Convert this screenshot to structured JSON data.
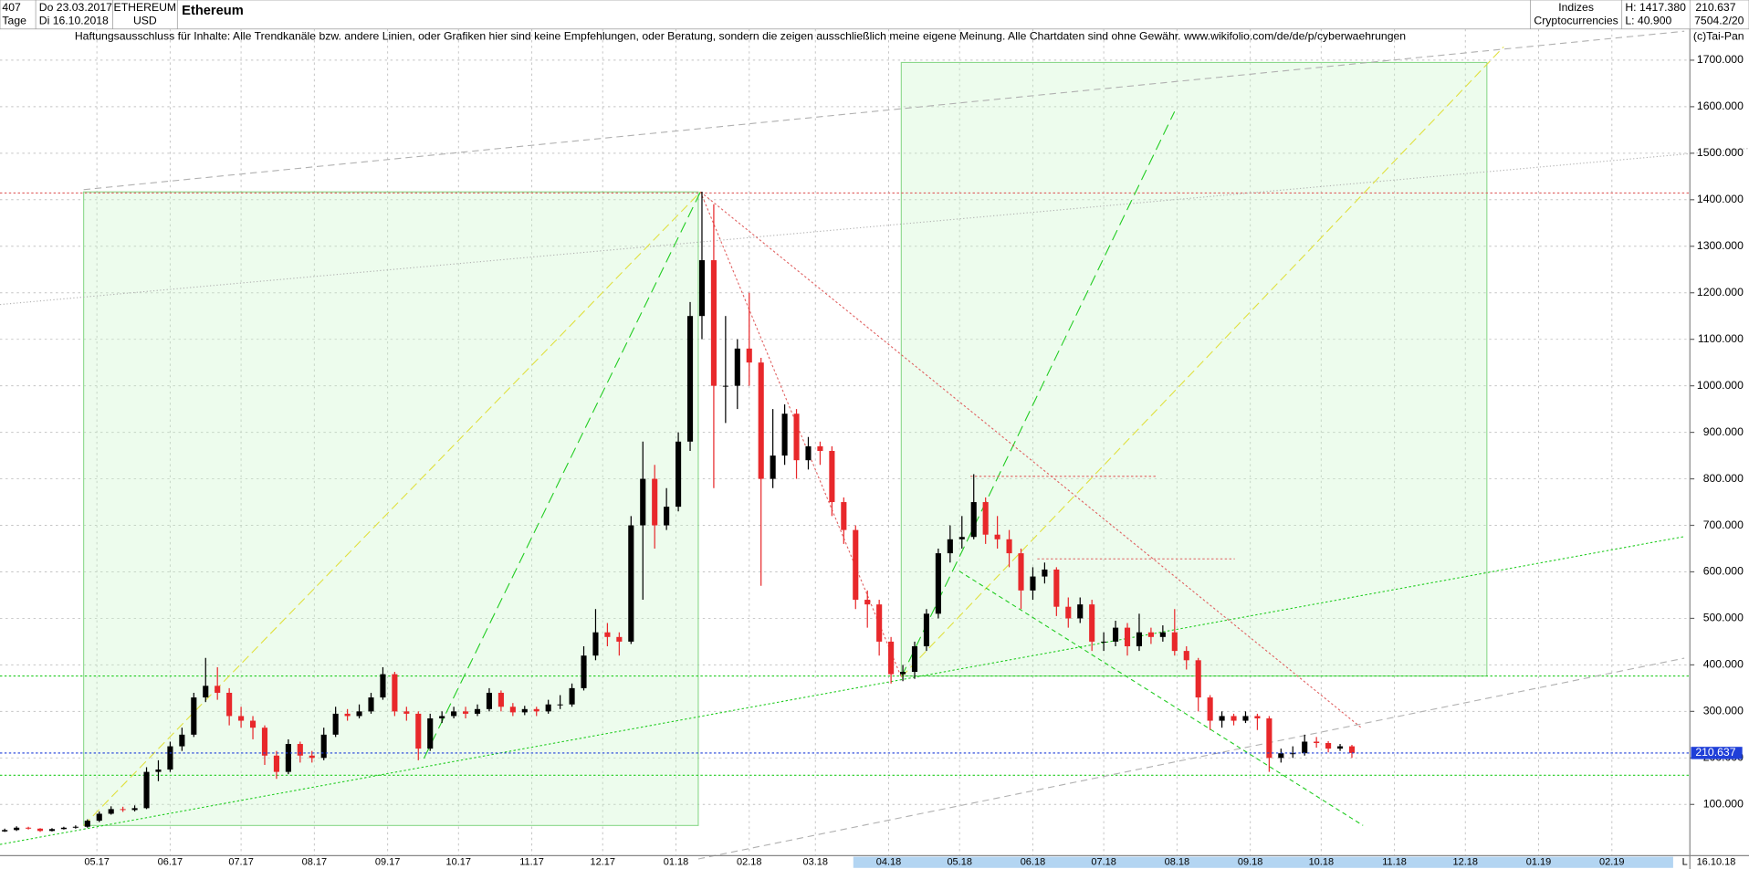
{
  "header": {
    "count": "407",
    "start": "Do 23.03.2017",
    "period": "Tage",
    "end": "Di 16.10.2018",
    "symbol": "ETHEREUM",
    "currency": "USD",
    "group": "Indizes",
    "category": "Cryptocurrencies",
    "high": "H: 1417.380",
    "low": "L: 40.900",
    "last": "210.637",
    "extra": "7504.2/20",
    "copyright": "(c)Tai-Pan",
    "disclaimer": "Haftungsausschluss für Inhalte: Alle Trendkanäle bzw. andere Linien, oder Grafiken hier sind keine Empfehlungen, oder Beratung, sondern die zeigen ausschließlich meine eigene Meinung. Alle Chartdaten sind ohne Gewähr.  www.wikifolio.com/de/de/p/cyberwaehrungen",
    "footer_date": "16.10.18",
    "footer_mode": "L"
  },
  "chart_data": {
    "type": "candlestick",
    "title": "Ethereum",
    "up_color": "#000000",
    "down_color": "#e8282b",
    "marker_color": "#1f3fd8",
    "grid": true,
    "open": [
      42,
      45,
      50,
      48,
      43,
      47,
      50,
      52,
      65,
      80,
      90,
      88,
      92,
      170,
      175,
      225,
      250,
      330,
      355,
      340,
      290,
      280,
      265,
      205,
      170,
      230,
      205,
      200,
      250,
      295,
      290,
      300,
      330,
      380,
      300,
      295,
      220,
      285,
      290,
      300,
      295,
      305,
      340,
      310,
      298,
      305,
      300,
      315,
      315,
      350,
      420,
      470,
      460,
      450,
      700,
      800,
      700,
      740,
      880,
      1150,
      1270,
      1000,
      1000,
      1080,
      1050,
      800,
      850,
      940,
      840,
      870,
      860,
      750,
      690,
      540,
      530,
      450,
      380,
      385,
      440,
      510,
      640,
      670,
      675,
      750,
      680,
      670,
      640,
      560,
      590,
      605,
      525,
      500,
      530,
      450,
      450,
      480,
      440,
      470,
      460,
      470,
      430,
      410,
      330,
      280,
      290,
      280,
      290,
      285,
      200,
      210,
      210,
      235,
      232,
      220,
      225
    ],
    "high": [
      48,
      53,
      52,
      49,
      49,
      52,
      55,
      68,
      85,
      96,
      95,
      98,
      180,
      195,
      235,
      265,
      340,
      415,
      395,
      350,
      310,
      290,
      270,
      215,
      240,
      235,
      215,
      265,
      310,
      305,
      315,
      340,
      395,
      385,
      310,
      300,
      295,
      300,
      310,
      310,
      315,
      350,
      345,
      318,
      312,
      310,
      325,
      335,
      360,
      440,
      520,
      490,
      470,
      720,
      880,
      830,
      780,
      900,
      1180,
      1417.38,
      1390,
      1150,
      1100,
      1200,
      1060,
      950,
      960,
      950,
      890,
      880,
      870,
      760,
      700,
      560,
      540,
      460,
      400,
      450,
      520,
      650,
      700,
      720,
      810,
      760,
      720,
      690,
      650,
      610,
      620,
      610,
      545,
      545,
      540,
      470,
      495,
      490,
      510,
      480,
      485,
      520,
      440,
      415,
      335,
      300,
      295,
      300,
      295,
      290,
      220,
      225,
      250,
      245,
      236,
      230,
      228
    ],
    "low": [
      40.9,
      43,
      46,
      41,
      42,
      46,
      48,
      50,
      62,
      78,
      84,
      85,
      90,
      150,
      170,
      215,
      245,
      320,
      325,
      270,
      265,
      240,
      185,
      155,
      165,
      190,
      190,
      195,
      245,
      280,
      285,
      295,
      325,
      290,
      280,
      195,
      215,
      275,
      285,
      285,
      290,
      300,
      300,
      290,
      292,
      290,
      295,
      305,
      310,
      345,
      410,
      440,
      420,
      445,
      540,
      650,
      690,
      730,
      860,
      1100,
      780,
      920,
      950,
      1000,
      570,
      780,
      830,
      800,
      820,
      830,
      720,
      660,
      520,
      480,
      420,
      360,
      365,
      370,
      430,
      500,
      620,
      650,
      670,
      660,
      650,
      610,
      520,
      540,
      575,
      505,
      480,
      490,
      430,
      430,
      440,
      420,
      430,
      445,
      450,
      420,
      390,
      300,
      260,
      265,
      270,
      275,
      260,
      170,
      190,
      200,
      205,
      222,
      212,
      215,
      200
    ],
    "close": [
      45,
      50,
      48,
      43,
      47,
      50,
      52,
      65,
      80,
      90,
      88,
      92,
      170,
      175,
      225,
      250,
      330,
      355,
      340,
      290,
      280,
      265,
      205,
      170,
      230,
      205,
      200,
      250,
      295,
      290,
      300,
      330,
      380,
      300,
      295,
      220,
      285,
      290,
      300,
      295,
      305,
      340,
      310,
      298,
      305,
      300,
      315,
      315,
      350,
      420,
      470,
      460,
      450,
      700,
      800,
      700,
      740,
      880,
      1150,
      1270,
      1000,
      1000,
      1080,
      1050,
      800,
      850,
      940,
      840,
      870,
      860,
      750,
      690,
      540,
      530,
      450,
      380,
      385,
      440,
      510,
      640,
      670,
      675,
      750,
      680,
      670,
      640,
      560,
      590,
      605,
      525,
      500,
      530,
      450,
      450,
      480,
      440,
      470,
      460,
      470,
      430,
      410,
      330,
      280,
      290,
      280,
      290,
      285,
      200,
      210,
      210,
      235,
      232,
      220,
      225,
      210.637
    ],
    "xlim": [
      -0.4,
      142.6
    ],
    "xticks": [
      {
        "value": 7.8,
        "label": "05.17"
      },
      {
        "value": 14,
        "label": "06.17"
      },
      {
        "value": 20,
        "label": "07.17"
      },
      {
        "value": 26.2,
        "label": "08.17"
      },
      {
        "value": 32.4,
        "label": "09.17"
      },
      {
        "value": 38.4,
        "label": "10.17"
      },
      {
        "value": 44.6,
        "label": "11.17"
      },
      {
        "value": 50.6,
        "label": "12.17"
      },
      {
        "value": 56.8,
        "label": "01.18"
      },
      {
        "value": 63,
        "label": "02.18"
      },
      {
        "value": 68.6,
        "label": "03.18"
      },
      {
        "value": 74.8,
        "label": "04.18"
      },
      {
        "value": 80.8,
        "label": "05.18"
      },
      {
        "value": 87,
        "label": "06.18"
      },
      {
        "value": 93,
        "label": "07.18"
      },
      {
        "value": 99.2,
        "label": "08.18"
      },
      {
        "value": 105.4,
        "label": "09.18"
      },
      {
        "value": 111.4,
        "label": "10.18"
      },
      {
        "value": 117.6,
        "label": "11.18"
      },
      {
        "value": 123.6,
        "label": "12.18"
      },
      {
        "value": 129.8,
        "label": "01.19"
      },
      {
        "value": 136,
        "label": "02.19"
      }
    ],
    "ylim": [
      -10,
      1767
    ],
    "yticks": [
      {
        "value": 100,
        "label": "100.000"
      },
      {
        "value": 200,
        "label": "200.000"
      },
      {
        "value": 300,
        "label": "300.000"
      },
      {
        "value": 400,
        "label": "400.000"
      },
      {
        "value": 500,
        "label": "500.000"
      },
      {
        "value": 600,
        "label": "600.000"
      },
      {
        "value": 700,
        "label": "700.000"
      },
      {
        "value": 800,
        "label": "800.000"
      },
      {
        "value": 900,
        "label": "900.000"
      },
      {
        "value": 1000,
        "label": "1000.000"
      },
      {
        "value": 1100,
        "label": "1100.000"
      },
      {
        "value": 1200,
        "label": "1200.000"
      },
      {
        "value": 1300,
        "label": "1300.000"
      },
      {
        "value": 1400,
        "label": "1400.000"
      },
      {
        "value": 1500,
        "label": "1500.000"
      },
      {
        "value": 1600,
        "label": "1600.000"
      },
      {
        "value": 1700,
        "label": "1700.000"
      }
    ]
  }
}
